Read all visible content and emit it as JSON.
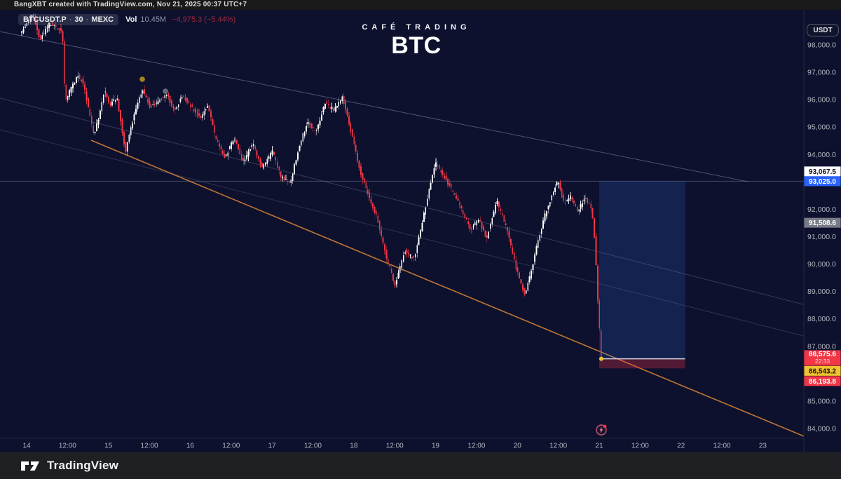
{
  "title_bar": {
    "text": "BangXBT created with TradingView.com, Nov 21, 2025 00:37 UTC+7"
  },
  "legend": {
    "symbol": "BTCUSDT.P",
    "sep": "·",
    "interval": "30",
    "exchange": "MEXC",
    "vol_label": "Vol",
    "vol_value": "10.45M",
    "change_value": "−4,975.3 (−5.44%)"
  },
  "watermark": {
    "line1": "CAFÉ TRADING",
    "line2": "BTC"
  },
  "currency_button": {
    "label": "USDT"
  },
  "footer": {
    "brand": "TradingView"
  },
  "colors": {
    "background": "#0d112e",
    "up": "#ffffff",
    "down": "#f23645",
    "axis_text": "#b2b5be",
    "axis_border": "#232842",
    "accent_blue": "#2962ff",
    "accent_red": "#f23645",
    "accent_yellow": "#f2c230",
    "accent_gray": "#787b86",
    "trendline_orange": "#c97b34",
    "channel_line": "#8a93b8",
    "horizontal_line": "#7e89a8",
    "position_profit_fill": "rgba(56,114,240,0.18)",
    "position_loss_fill": "rgba(242,54,69,0.30)",
    "entry_line": "#d9dce4"
  },
  "chart_data": {
    "type": "candlestick",
    "title": "BTC",
    "symbol": "BTCUSDT.P",
    "interval": "30",
    "exchange": "MEXC",
    "volume": "10.45M",
    "change": "−4,975.3 (−5.44%)",
    "last_price": 86575.6,
    "bar_countdown": "22:33",
    "price_axis_ticks": [
      98000,
      97000,
      96000,
      95000,
      94000,
      92000,
      91000,
      90000,
      89000,
      88000,
      87000,
      85000,
      84000
    ],
    "price_axis_range_visible": [
      83600,
      99300
    ],
    "time_axis_ticks": [
      [
        "14",
        0
      ],
      [
        "12:00",
        0.5
      ],
      [
        "15",
        1
      ],
      [
        "12:00",
        1.5
      ],
      [
        "16",
        2
      ],
      [
        "12:00",
        2.5
      ],
      [
        "17",
        3
      ],
      [
        "12:00",
        3.5
      ],
      [
        "18",
        4
      ],
      [
        "12:00",
        4.5
      ],
      [
        "19",
        5
      ],
      [
        "12:00",
        5.5
      ],
      [
        "20",
        6
      ],
      [
        "12:00",
        6.5
      ],
      [
        "21",
        7
      ],
      [
        "12:00",
        7.5
      ],
      [
        "22",
        8
      ],
      [
        "12:00",
        8.5
      ],
      [
        "23",
        9
      ]
    ],
    "axis_price_labels": [
      {
        "id": "hline-white",
        "text": "93,067.5",
        "price": 93067.5,
        "bg": "#ffffff",
        "fg": "#0c0e1a",
        "place": "above_next"
      },
      {
        "id": "target-blue",
        "text": "93,025.0",
        "price": 93025.0,
        "bg": "#2962ff",
        "fg": "#ffffff"
      },
      {
        "id": "drawing-gray",
        "text": "91,508.6",
        "price": 91508.6,
        "bg": "#787b86",
        "fg": "#ffffff"
      },
      {
        "id": "last-red",
        "text": "86,575.6",
        "sub": "22:33",
        "price": 86575.6,
        "bg": "#f23645",
        "fg": "#ffffff"
      },
      {
        "id": "entry-yellow",
        "text": "86,543.2",
        "price": 86543.2,
        "bg": "#f2c230",
        "fg": "#141414",
        "place": "below_prev"
      },
      {
        "id": "stop-red",
        "text": "86,193.8",
        "price": 86193.8,
        "bg": "#f23645",
        "fg": "#ffffff",
        "place": "below_prev"
      }
    ],
    "horizontal_line_price": 93025.0,
    "long_position": {
      "entry": 86543.2,
      "target": 93025.0,
      "stop": 86193.8,
      "time_start_day": 7.0,
      "time_end_day": 8.05
    },
    "trendlines": [
      {
        "id": "orange-support",
        "from_day": 0.788,
        "from_price": 94520,
        "to_day": 9.5,
        "to_price": 83720,
        "color_key": "trendline_orange",
        "width": 1.6,
        "opacity": 0.95
      },
      {
        "id": "channel-upper",
        "from_day": -0.326,
        "from_price": 98486,
        "to_day": 8.817,
        "to_price": 93009,
        "color_key": "channel_line",
        "width": 1,
        "opacity": 0.5
      },
      {
        "id": "channel-mid",
        "from_day": -0.326,
        "from_price": 96055,
        "to_day": 9.527,
        "to_price": 88504,
        "color_key": "channel_line",
        "width": 1,
        "opacity": 0.32
      },
      {
        "id": "channel-lower",
        "from_day": -0.326,
        "from_price": 94903,
        "to_day": 9.527,
        "to_price": 87352,
        "color_key": "channel_line",
        "width": 1,
        "opacity": 0.25
      }
    ],
    "markers": [
      {
        "id": "gold-dot",
        "day": 1.414,
        "price": 96746,
        "color": "#b99022"
      },
      {
        "id": "gray-dot",
        "day": 1.697,
        "price": 96311,
        "color": "#70747e"
      }
    ],
    "price_path_keypoints": [
      [
        -0.07,
        98400
      ],
      [
        0.086,
        99100
      ],
      [
        0.171,
        98200
      ],
      [
        0.291,
        98800
      ],
      [
        0.446,
        98500
      ],
      [
        0.48,
        95900
      ],
      [
        0.531,
        96300
      ],
      [
        0.634,
        96900
      ],
      [
        0.703,
        96600
      ],
      [
        0.771,
        95600
      ],
      [
        0.831,
        94700
      ],
      [
        0.891,
        95300
      ],
      [
        0.96,
        96400
      ],
      [
        1.028,
        95800
      ],
      [
        1.114,
        96100
      ],
      [
        1.217,
        94100
      ],
      [
        1.345,
        95700
      ],
      [
        1.431,
        96350
      ],
      [
        1.517,
        95750
      ],
      [
        1.628,
        95900
      ],
      [
        1.714,
        96250
      ],
      [
        1.817,
        95600
      ],
      [
        1.919,
        96150
      ],
      [
        2.031,
        95700
      ],
      [
        2.142,
        95350
      ],
      [
        2.228,
        95850
      ],
      [
        2.314,
        94600
      ],
      [
        2.434,
        93900
      ],
      [
        2.545,
        94600
      ],
      [
        2.656,
        93700
      ],
      [
        2.776,
        94400
      ],
      [
        2.888,
        93500
      ],
      [
        3.016,
        94100
      ],
      [
        3.119,
        93200
      ],
      [
        3.23,
        92950
      ],
      [
        3.342,
        94300
      ],
      [
        3.444,
        95200
      ],
      [
        3.547,
        94800
      ],
      [
        3.659,
        95900
      ],
      [
        3.77,
        95600
      ],
      [
        3.873,
        96100
      ],
      [
        4.001,
        94500
      ],
      [
        4.087,
        93400
      ],
      [
        4.198,
        92400
      ],
      [
        4.301,
        91600
      ],
      [
        4.404,
        90300
      ],
      [
        4.515,
        89200
      ],
      [
        4.627,
        90500
      ],
      [
        4.747,
        90200
      ],
      [
        4.858,
        91700
      ],
      [
        5.004,
        93700
      ],
      [
        5.115,
        93200
      ],
      [
        5.227,
        92600
      ],
      [
        5.329,
        92000
      ],
      [
        5.432,
        91300
      ],
      [
        5.544,
        91600
      ],
      [
        5.629,
        90900
      ],
      [
        5.758,
        92300
      ],
      [
        5.886,
        91200
      ],
      [
        5.998,
        89800
      ],
      [
        6.1,
        88900
      ],
      [
        6.169,
        89600
      ],
      [
        6.255,
        90800
      ],
      [
        6.357,
        91900
      ],
      [
        6.443,
        92600
      ],
      [
        6.503,
        93050
      ],
      [
        6.58,
        92200
      ],
      [
        6.657,
        92500
      ],
      [
        6.743,
        91900
      ],
      [
        6.828,
        92400
      ],
      [
        6.897,
        92200
      ],
      [
        6.94,
        91500
      ],
      [
        6.974,
        89800
      ],
      [
        7.008,
        87800
      ],
      [
        7.042,
        86575.6
      ]
    ]
  }
}
